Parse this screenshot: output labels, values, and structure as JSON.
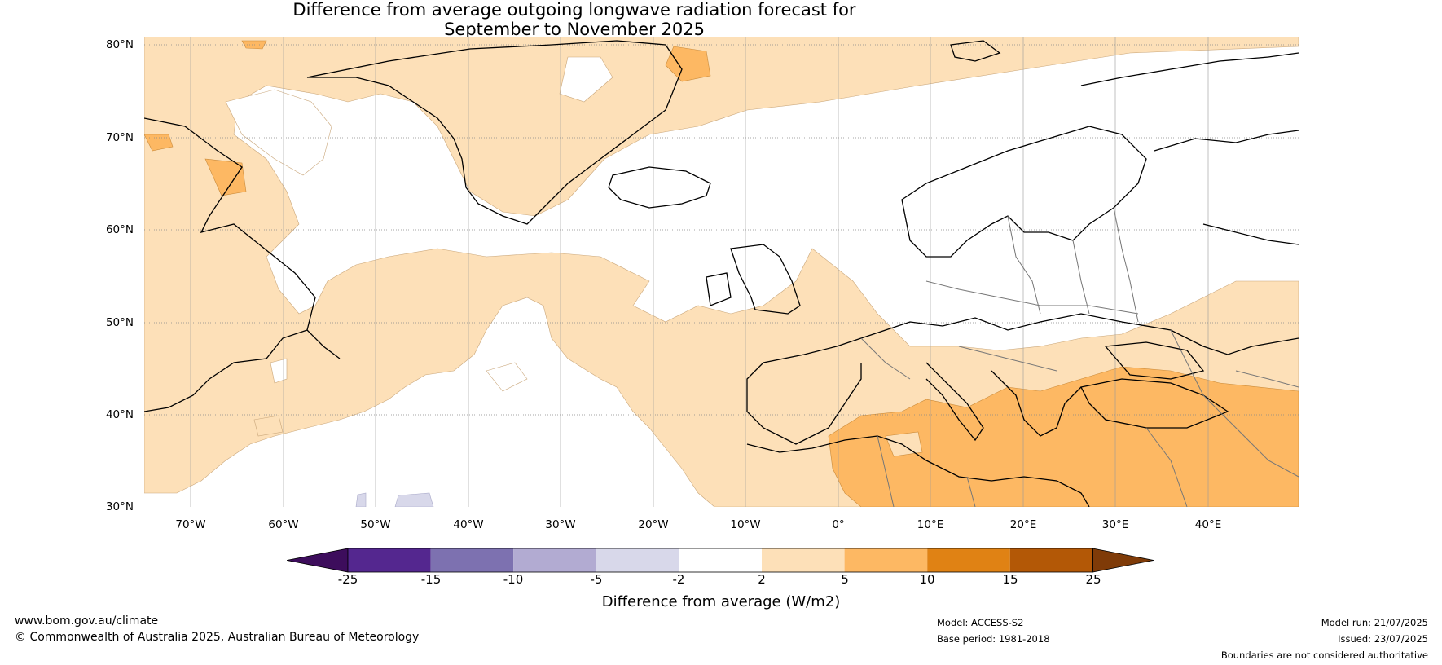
{
  "title_line1": "Difference from average outgoing longwave radiation forecast for",
  "title_line2": "September to November 2025",
  "lat_labels": [
    "80°N",
    "70°N",
    "60°N",
    "50°N",
    "40°N",
    "30°N"
  ],
  "lon_labels": [
    "70°W",
    "60°W",
    "50°W",
    "40°W",
    "30°W",
    "20°W",
    "10°W",
    "0°",
    "10°E",
    "20°E",
    "30°E",
    "40°E"
  ],
  "colorbar": {
    "ticks": [
      "-25",
      "-15",
      "-10",
      "-5",
      "-2",
      "2",
      "5",
      "10",
      "15",
      "25"
    ],
    "colors": [
      "#3d0d5c",
      "#54278f",
      "#7d71b0",
      "#b2abd2",
      "#d8d8ea",
      "#ffffff",
      "#fde0b8",
      "#fdb863",
      "#e08214",
      "#b35806",
      "#7f3b08"
    ],
    "label": "Difference from average (W/m2)"
  },
  "footer": {
    "url": "www.bom.gov.au/climate",
    "copyright": "© Commonwealth of Australia 2025, Australian Bureau of Meteorology",
    "model": "Model: ACCESS-S2",
    "base_period": "Base period: 1981-2018",
    "model_run": "Model run: 21/07/2025",
    "issued": "Issued: 23/07/2025",
    "disclaimer": "Boundaries are not considered authoritative"
  }
}
